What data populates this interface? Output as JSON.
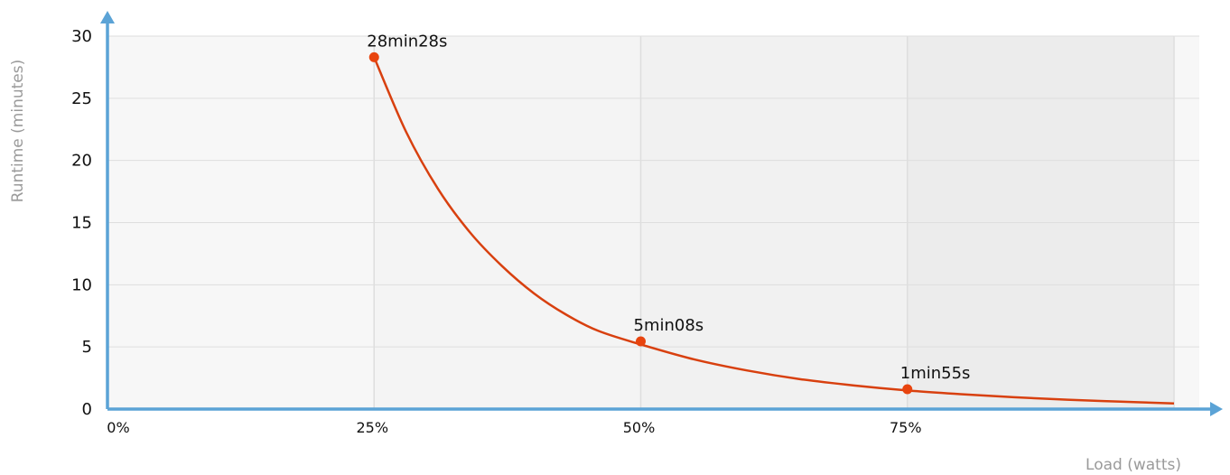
{
  "chart_data": {
    "type": "line",
    "xlabel": "Load (watts)",
    "ylabel": "Runtime (minutes)",
    "x_ticks": [
      {
        "value": 0,
        "label": "0%"
      },
      {
        "value": 25,
        "label": "25%"
      },
      {
        "value": 50,
        "label": "50%"
      },
      {
        "value": 75,
        "label": "75%"
      }
    ],
    "y_ticks": [
      {
        "value": 0,
        "label": "0"
      },
      {
        "value": 5,
        "label": "5"
      },
      {
        "value": 10,
        "label": "10"
      },
      {
        "value": 15,
        "label": "15"
      },
      {
        "value": 20,
        "label": "20"
      },
      {
        "value": 25,
        "label": "25"
      },
      {
        "value": 30,
        "label": "30"
      }
    ],
    "xlim": [
      0,
      100
    ],
    "ylim": [
      0,
      30
    ],
    "grid": true,
    "curve": {
      "x": [
        25,
        28,
        31,
        34,
        37,
        40,
        43,
        46,
        50,
        55,
        60,
        65,
        70,
        75,
        80,
        85,
        90,
        95,
        100
      ],
      "y": [
        28.3,
        22.3,
        17.7,
        14.2,
        11.5,
        9.3,
        7.6,
        6.3,
        5.2,
        4.0,
        3.1,
        2.4,
        1.9,
        1.5,
        1.2,
        0.95,
        0.75,
        0.6,
        0.45
      ]
    },
    "points": [
      {
        "x": 25,
        "y": 28.47,
        "label": "28min28s"
      },
      {
        "x": 50,
        "y": 5.13,
        "label": "5min08s"
      },
      {
        "x": 75,
        "y": 1.92,
        "label": "1min55s"
      }
    ],
    "colors": {
      "line": "#d8400f",
      "point": "#e8440e",
      "axis": "#5ba3d6",
      "grid": "#dedede",
      "band_1": "#f7f7f7",
      "band_2": "#f4f4f4",
      "band_3": "#f1f1f1",
      "band_4": "#ececec"
    }
  }
}
